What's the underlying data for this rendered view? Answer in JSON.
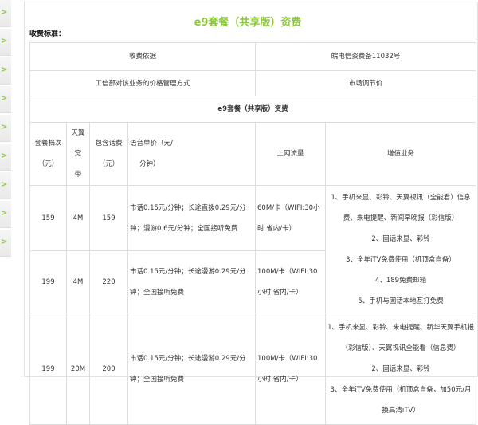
{
  "sidebar": {
    "items": [
      ">",
      ">",
      ">",
      ">",
      ">",
      ">",
      ">",
      ">",
      ">"
    ],
    "icon": "chevron-right-icon",
    "accent": "#8dc63f"
  },
  "title": "e9套餐（共享版）资费",
  "section_label": "收费标准：",
  "info_rows": [
    {
      "key": "收费依据",
      "value": "皖电信资费备11032号"
    },
    {
      "key": "工信部对该业务的价格管理方式",
      "value": "市场调节价"
    }
  ],
  "table_title": "e9套餐（共享版）资费",
  "headers": {
    "tier": [
      "套餐档次",
      "（元）"
    ],
    "bandwidth": [
      "天翼宽",
      "带"
    ],
    "included": [
      "包含话费",
      "（元）"
    ],
    "voice": [
      "语音单价（元/",
      "分钟）"
    ],
    "data": "上网流量",
    "vas": "增值业务"
  },
  "rows": [
    {
      "tier": "159",
      "bandwidth": "4M",
      "included": "159",
      "voice": "市话0.15元/分钟；长途直拨0.29元/分钟；漫游0.6元/分钟；全国接听免费",
      "data": "60M/卡（WIFI:30小时 省内/卡）"
    },
    {
      "tier": "199",
      "bandwidth": "4M",
      "included": "220",
      "voice": "市话0.15元/分钟；长途漫游0.29元/分钟；全国接听免费",
      "data": "100M/卡（WIFI:30小时 省内/卡）"
    },
    {
      "tier": "199",
      "bandwidth": "20M",
      "included": "200",
      "voice": "市话0.15元/分钟；长途漫游0.29元/分钟；全国接听免费",
      "data": "100M/卡（WIFI:30小时 省内/卡）"
    }
  ],
  "vas_shared": [
    "1、手机来显、彩铃、天翼视讯（全能看）信息费、来电提醒、新闻早晚报（彩信版）",
    "2、固话来显、彩铃",
    "3、全年iTV免费使用（机顶盒自备）",
    "4、189免费邮箱",
    "5、手机与固话本地互打免费"
  ],
  "vas_row3": [
    "1、手机来显、彩铃、来电提醒、新华天翼手机报（彩信版）、天翼视讯全能看（信息费）",
    "2、固话来显、彩铃",
    "3、全年iTV免费使用（机顶盒自备，加50元/月换高清iTV）"
  ]
}
